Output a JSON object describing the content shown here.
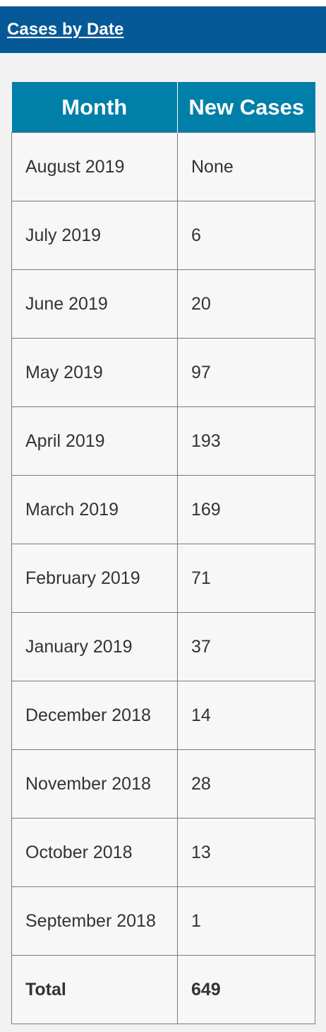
{
  "header": {
    "link_label": "Cases by Date"
  },
  "table": {
    "columns": [
      "Month",
      "New Cases"
    ],
    "rows": [
      {
        "month": "August 2019",
        "cases": "None"
      },
      {
        "month": "July 2019",
        "cases": "6"
      },
      {
        "month": "June 2019",
        "cases": "20"
      },
      {
        "month": "May 2019",
        "cases": "97"
      },
      {
        "month": "April 2019",
        "cases": "193"
      },
      {
        "month": "March 2019",
        "cases": "169"
      },
      {
        "month": "February 2019",
        "cases": "71"
      },
      {
        "month": "January 2019",
        "cases": "37"
      },
      {
        "month": "December 2018",
        "cases": "14"
      },
      {
        "month": "November 2018",
        "cases": "28"
      },
      {
        "month": "October 2018",
        "cases": "13"
      },
      {
        "month": "September 2018",
        "cases": "1"
      }
    ],
    "total": {
      "label": "Total",
      "value": "649"
    }
  },
  "colors": {
    "header_bar": "#065997",
    "table_header": "#007fa9",
    "panel_background": "#f2f2f2",
    "cell_background": "#f7f7f7",
    "cell_text": "#333333"
  }
}
